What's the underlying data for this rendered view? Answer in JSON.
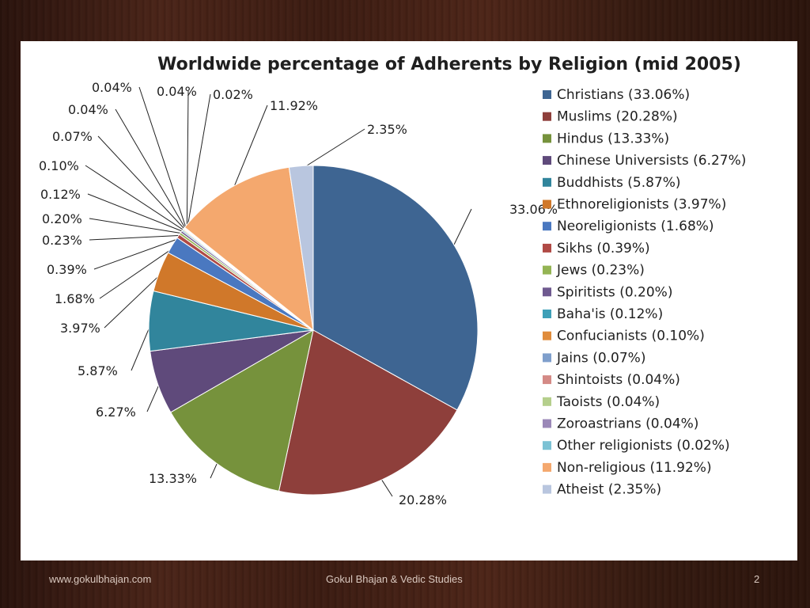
{
  "footer": {
    "left": "www.gokulbhajan.com",
    "center": "Gokul Bhajan & Vedic Studies",
    "right": "2"
  },
  "chart_data": {
    "type": "pie",
    "title": "Worldwide percentage of Adherents by Religion (mid 2005)",
    "legend_position": "right",
    "slices": [
      {
        "name": "Christians",
        "value": 33.06,
        "label": "33.06%",
        "legend": "Christians (33.06%)",
        "color": "#3e6592"
      },
      {
        "name": "Muslims",
        "value": 20.28,
        "label": "20.28%",
        "legend": "Muslims (20.28%)",
        "color": "#8e3f3b"
      },
      {
        "name": "Hindus",
        "value": 13.33,
        "label": "13.33%",
        "legend": "Hindus (13.33%)",
        "color": "#76923c"
      },
      {
        "name": "Chinese Universists",
        "value": 6.27,
        "label": "6.27%",
        "legend": "Chinese Universists (6.27%)",
        "color": "#5f4a7b"
      },
      {
        "name": "Buddhists",
        "value": 5.87,
        "label": "5.87%",
        "legend": "Buddhists (5.87%)",
        "color": "#31859c"
      },
      {
        "name": "Ethnoreligionists",
        "value": 3.97,
        "label": "3.97%",
        "legend": "Ethnoreligionists (3.97%)",
        "color": "#d0782a"
      },
      {
        "name": "Neoreligionists",
        "value": 1.68,
        "label": "1.68%",
        "legend": "Neoreligionists (1.68%)",
        "color": "#4a78c0"
      },
      {
        "name": "Sikhs",
        "value": 0.39,
        "label": "0.39%",
        "legend": "Sikhs (0.39%)",
        "color": "#b04a45"
      },
      {
        "name": "Jews",
        "value": 0.23,
        "label": "0.23%",
        "legend": "Jews (0.23%)",
        "color": "#94b454"
      },
      {
        "name": "Spiritists",
        "value": 0.2,
        "label": "0.20%",
        "legend": "Spiritists (0.20%)",
        "color": "#6f5a90"
      },
      {
        "name": "Baha'is",
        "value": 0.12,
        "label": "0.12%",
        "legend": "Baha'is (0.12%)",
        "color": "#3ea0b8"
      },
      {
        "name": "Confucianists",
        "value": 0.1,
        "label": "0.10%",
        "legend": "Confucianists (0.10%)",
        "color": "#e08c3c"
      },
      {
        "name": "Jains",
        "value": 0.07,
        "label": "0.07%",
        "legend": "Jains (0.07%)",
        "color": "#7f9fcc"
      },
      {
        "name": "Shintoists",
        "value": 0.04,
        "label": "0.04%",
        "legend": "Shintoists (0.04%)",
        "color": "#d48a86"
      },
      {
        "name": "Taoists",
        "value": 0.04,
        "label": "0.04%",
        "legend": "Taoists (0.04%)",
        "color": "#b5cf8c"
      },
      {
        "name": "Zoroastrians",
        "value": 0.04,
        "label": "0.04%",
        "legend": "Zoroastrians (0.04%)",
        "color": "#9b88b8"
      },
      {
        "name": "Other religionists",
        "value": 0.02,
        "label": "0.02%",
        "legend": "Other religionists (0.02%)",
        "color": "#7cc2d4"
      },
      {
        "name": "Non-religious",
        "value": 11.92,
        "label": "11.92%",
        "legend": "Non-religious (11.92%)",
        "color": "#f4a86e"
      },
      {
        "name": "Atheist",
        "value": 2.35,
        "label": "2.35%",
        "legend": "Atheist (2.35%)",
        "color": "#b9c6df"
      }
    ]
  }
}
